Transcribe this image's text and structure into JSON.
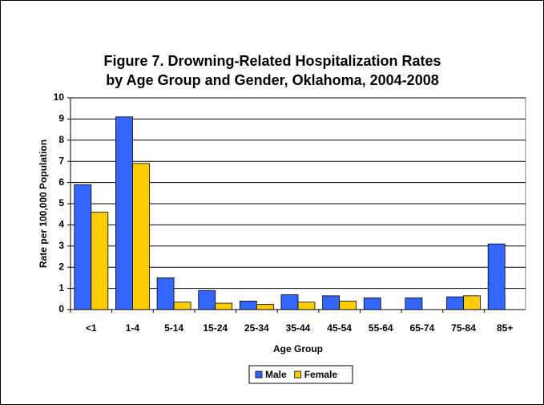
{
  "chart_data": {
    "type": "bar",
    "title": [
      "Figure 7. Drowning-Related Hospitalization Rates",
      "by Age Group and Gender, Oklahoma, 2004-2008"
    ],
    "x_label": "Age Group",
    "y_label": "Rate per 100,000 Population",
    "categories": [
      "<1",
      "1-4",
      "5-14",
      "15-24",
      "25-34",
      "35-44",
      "45-54",
      "55-64",
      "65-74",
      "75-84",
      "85+"
    ],
    "series": [
      {
        "name": "Male",
        "color": "#3366ff",
        "values": [
          5.9,
          9.1,
          1.5,
          0.9,
          0.4,
          0.7,
          0.65,
          0.55,
          0.55,
          0.6,
          3.1
        ]
      },
      {
        "name": "Female",
        "color": "#ffcc00",
        "values": [
          4.6,
          6.9,
          0.35,
          0.3,
          0.25,
          0.35,
          0.4,
          null,
          null,
          0.65,
          null
        ]
      }
    ],
    "ylim": [
      0,
      10
    ],
    "yticks": [
      0,
      1,
      2,
      3,
      4,
      5,
      6,
      7,
      8,
      9,
      10
    ],
    "grid": true,
    "legend": "bottom"
  }
}
